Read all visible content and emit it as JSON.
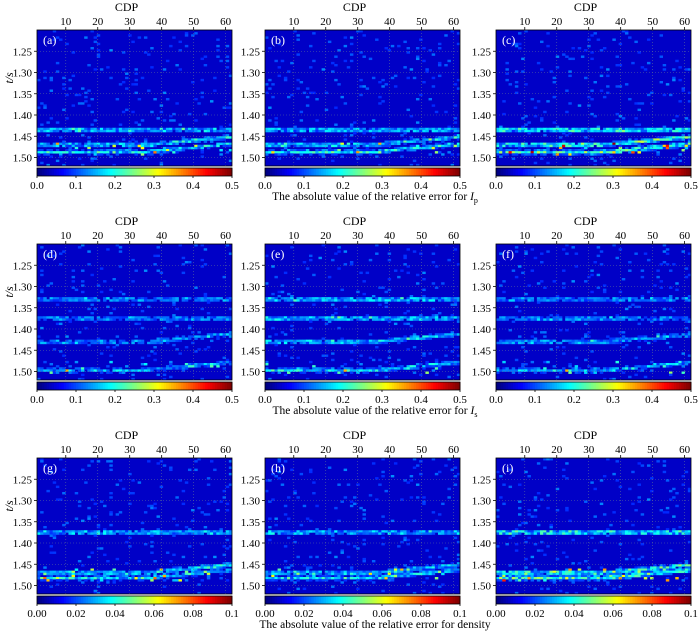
{
  "figure": {
    "caption_rows": [
      {
        "text": "The absolute value of the relative error for ",
        "sub_base": "I",
        "sub": "p"
      },
      {
        "text": "The absolute value of the relative error for ",
        "sub_base": "I",
        "sub": "s"
      },
      {
        "text": "The absolute value of the relative error for density",
        "sub_base": "",
        "sub": ""
      }
    ]
  },
  "chart_data": [
    {
      "type": "heatmap",
      "panel": "(a)",
      "xlabel": "CDP",
      "ylabel": "t/s",
      "x_ticks": [
        10,
        20,
        30,
        40,
        50,
        60
      ],
      "y_ticks": [
        "1.25",
        "1.30",
        "1.35",
        "1.40",
        "1.45",
        "1.50"
      ],
      "xlim": [
        1,
        62
      ],
      "ylim": [
        1.2,
        1.52
      ],
      "colorscale": "jet",
      "colorbar_range": [
        0,
        0.5
      ],
      "colorbar_ticks": [
        "0.0",
        "0.1",
        "0.2",
        "0.3",
        "0.4",
        "0.5"
      ],
      "bright_horizons_s": [
        1.435,
        1.47,
        1.487
      ],
      "max_intensity": "moderate",
      "grid": true
    },
    {
      "type": "heatmap",
      "panel": "(b)",
      "xlabel": "CDP",
      "ylabel": "",
      "x_ticks": [
        10,
        20,
        30,
        40,
        50,
        60
      ],
      "y_ticks": [
        "1.25",
        "1.30",
        "1.35",
        "1.40",
        "1.45",
        "1.50"
      ],
      "xlim": [
        1,
        62
      ],
      "ylim": [
        1.2,
        1.52
      ],
      "colorscale": "jet",
      "colorbar_range": [
        0,
        0.5
      ],
      "colorbar_ticks": [
        "0.0",
        "0.1",
        "0.2",
        "0.3",
        "0.4",
        "0.5"
      ],
      "bright_horizons_s": [
        1.435,
        1.47,
        1.487
      ],
      "max_intensity": "moderate",
      "grid": true
    },
    {
      "type": "heatmap",
      "panel": "(c)",
      "xlabel": "CDP",
      "ylabel": "",
      "x_ticks": [
        10,
        20,
        30,
        40,
        50,
        60
      ],
      "y_ticks": [
        "1.25",
        "1.30",
        "1.35",
        "1.40",
        "1.45",
        "1.50"
      ],
      "xlim": [
        1,
        62
      ],
      "ylim": [
        1.2,
        1.52
      ],
      "colorscale": "jet",
      "colorbar_range": [
        0,
        0.5
      ],
      "colorbar_ticks": [
        "0.0",
        "0.1",
        "0.2",
        "0.3",
        "0.4",
        "0.5"
      ],
      "bright_horizons_s": [
        1.435,
        1.47,
        1.487
      ],
      "max_intensity": "high",
      "grid": true
    },
    {
      "type": "heatmap",
      "panel": "(d)",
      "xlabel": "CDP",
      "ylabel": "t/s",
      "x_ticks": [
        10,
        20,
        30,
        40,
        50,
        60
      ],
      "y_ticks": [
        "1.25",
        "1.30",
        "1.35",
        "1.40",
        "1.45",
        "1.50"
      ],
      "xlim": [
        1,
        62
      ],
      "ylim": [
        1.2,
        1.52
      ],
      "colorscale": "jet",
      "colorbar_range": [
        0,
        0.5
      ],
      "colorbar_ticks": [
        "0.0",
        "0.1",
        "0.2",
        "0.3",
        "0.4",
        "0.5"
      ],
      "bright_horizons_s": [
        1.33,
        1.375,
        1.43,
        1.497
      ],
      "max_intensity": "low",
      "grid": true
    },
    {
      "type": "heatmap",
      "panel": "(e)",
      "xlabel": "CDP",
      "ylabel": "",
      "x_ticks": [
        10,
        20,
        30,
        40,
        50,
        60
      ],
      "y_ticks": [
        "1.25",
        "1.30",
        "1.35",
        "1.40",
        "1.45",
        "1.50"
      ],
      "xlim": [
        1,
        62
      ],
      "ylim": [
        1.2,
        1.52
      ],
      "colorscale": "jet",
      "colorbar_range": [
        0,
        0.5
      ],
      "colorbar_ticks": [
        "0.0",
        "0.1",
        "0.2",
        "0.3",
        "0.4",
        "0.5"
      ],
      "bright_horizons_s": [
        1.33,
        1.375,
        1.43,
        1.497
      ],
      "max_intensity": "moderate",
      "grid": true
    },
    {
      "type": "heatmap",
      "panel": "(f)",
      "xlabel": "CDP",
      "ylabel": "",
      "x_ticks": [
        10,
        20,
        30,
        40,
        50,
        60
      ],
      "y_ticks": [
        "1.25",
        "1.30",
        "1.35",
        "1.40",
        "1.45",
        "1.50"
      ],
      "xlim": [
        1,
        62
      ],
      "ylim": [
        1.2,
        1.52
      ],
      "colorscale": "jet",
      "colorbar_range": [
        0,
        0.5
      ],
      "colorbar_ticks": [
        "0.0",
        "0.1",
        "0.2",
        "0.3",
        "0.4",
        "0.5"
      ],
      "bright_horizons_s": [
        1.33,
        1.375,
        1.43,
        1.497
      ],
      "max_intensity": "low",
      "grid": true
    },
    {
      "type": "heatmap",
      "panel": "(g)",
      "xlabel": "CDP",
      "ylabel": "t/s",
      "x_ticks": [
        10,
        20,
        30,
        40,
        50,
        60
      ],
      "y_ticks": [
        "1.25",
        "1.30",
        "1.35",
        "1.40",
        "1.45",
        "1.50"
      ],
      "xlim": [
        1,
        62
      ],
      "ylim": [
        1.2,
        1.52
      ],
      "colorscale": "jet",
      "colorbar_range": [
        0,
        0.1
      ],
      "colorbar_ticks": [
        "0.00",
        "0.02",
        "0.04",
        "0.06",
        "0.08",
        "0.1"
      ],
      "bright_horizons_s": [
        1.375,
        1.47,
        1.482
      ],
      "max_intensity": "moderate",
      "grid": true
    },
    {
      "type": "heatmap",
      "panel": "(h)",
      "xlabel": "CDP",
      "ylabel": "",
      "x_ticks": [
        10,
        20,
        30,
        40,
        50,
        60
      ],
      "y_ticks": [
        "1.25",
        "1.30",
        "1.35",
        "1.40",
        "1.45",
        "1.50"
      ],
      "xlim": [
        1,
        62
      ],
      "ylim": [
        1.2,
        1.52
      ],
      "colorscale": "jet",
      "colorbar_range": [
        0,
        0.1
      ],
      "colorbar_ticks": [
        "0.00",
        "0.02",
        "0.04",
        "0.06",
        "0.08",
        "0.1"
      ],
      "bright_horizons_s": [
        1.375,
        1.47,
        1.482
      ],
      "max_intensity": "moderate",
      "grid": true
    },
    {
      "type": "heatmap",
      "panel": "(i)",
      "xlabel": "CDP",
      "ylabel": "",
      "x_ticks": [
        10,
        20,
        30,
        40,
        50,
        60
      ],
      "y_ticks": [
        "1.25",
        "1.30",
        "1.35",
        "1.40",
        "1.45",
        "1.50"
      ],
      "xlim": [
        1,
        62
      ],
      "ylim": [
        1.2,
        1.52
      ],
      "colorscale": "jet",
      "colorbar_range": [
        0,
        0.1
      ],
      "colorbar_ticks": [
        "0.00",
        "0.02",
        "0.04",
        "0.06",
        "0.08",
        "0.1"
      ],
      "bright_horizons_s": [
        1.375,
        1.47,
        1.482
      ],
      "max_intensity": "high",
      "grid": true
    }
  ]
}
